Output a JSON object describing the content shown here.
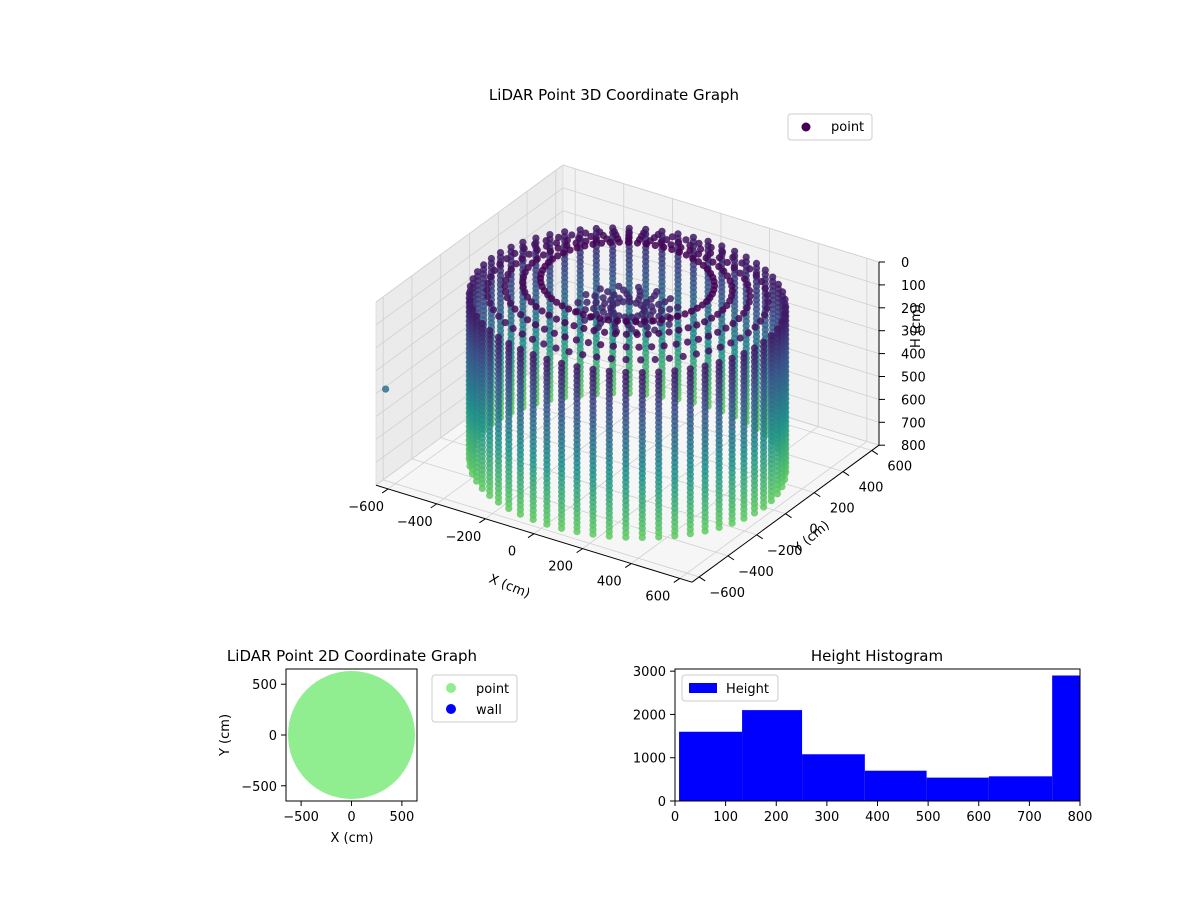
{
  "figure": {
    "background": "#ffffff"
  },
  "chart_data": [
    {
      "type": "scatter",
      "projection": "3d",
      "title": "LiDAR Point 3D Coordinate Graph",
      "xlabel": "X (cm)",
      "ylabel": "Y (cm)",
      "zlabel": "H (cm)",
      "xlim": [
        -650,
        650
      ],
      "ylim": [
        -650,
        650
      ],
      "zlim": [
        800,
        0
      ],
      "zaxis_inverted": true,
      "xticks": [
        -600,
        -400,
        -200,
        0,
        200,
        400,
        600
      ],
      "yticks": [
        -600,
        -400,
        -200,
        0,
        200,
        400,
        600
      ],
      "zticks": [
        0,
        100,
        200,
        300,
        400,
        500,
        600,
        700,
        800
      ],
      "grid": true,
      "colormap": "viridis",
      "colormap_stops": [
        "#440154",
        "#3b528b",
        "#21918c",
        "#5ec962"
      ],
      "legend": {
        "entries": [
          {
            "label": "point",
            "color": "#440154"
          }
        ],
        "position": "top-right"
      },
      "series": [
        {
          "name": "point",
          "description_of_shape": "cylindrical wall of vertical scan lines",
          "wall_radius": 560,
          "num_scan_lines": 60,
          "height_range": [
            0,
            800
          ],
          "roof_center_height": 120,
          "outlier": [
            -640,
            -600,
            400
          ]
        }
      ]
    },
    {
      "type": "scatter",
      "title": "LiDAR Point 2D Coordinate Graph",
      "xlabel": "X (cm)",
      "ylabel": "Y (cm)",
      "xlim": [
        -650,
        650
      ],
      "ylim": [
        -650,
        650
      ],
      "xticks": [
        -500,
        0,
        500
      ],
      "yticks": [
        -500,
        0,
        500
      ],
      "grid": false,
      "legend": {
        "entries": [
          {
            "label": "point",
            "color": "#90ee90"
          },
          {
            "label": "wall",
            "color": "#0000ff"
          }
        ],
        "position": "outside right"
      },
      "series": [
        {
          "name": "point",
          "color": "#90ee90",
          "shape": "filled disc",
          "radius": 630,
          "center": [
            0,
            0
          ]
        },
        {
          "name": "wall",
          "color": "#0000ff",
          "points": []
        }
      ]
    },
    {
      "type": "bar",
      "title": "Height Histogram",
      "xlim": [
        0,
        800
      ],
      "ylim": [
        0,
        3050
      ],
      "xticks": [
        0,
        100,
        200,
        300,
        400,
        500,
        600,
        700,
        800
      ],
      "yticks": [
        0,
        1000,
        2000,
        3000
      ],
      "grid": false,
      "legend": {
        "entries": [
          {
            "label": "Height",
            "color": "#0000ff"
          }
        ],
        "position": "top-left"
      },
      "series": [
        {
          "name": "Height",
          "color": "#0000ff",
          "bin_edges": [
            8,
            132.5,
            251,
            375,
            497,
            620,
            745,
            800
          ],
          "values": [
            1600,
            2100,
            1080,
            700,
            540,
            570,
            2900
          ]
        }
      ]
    }
  ]
}
